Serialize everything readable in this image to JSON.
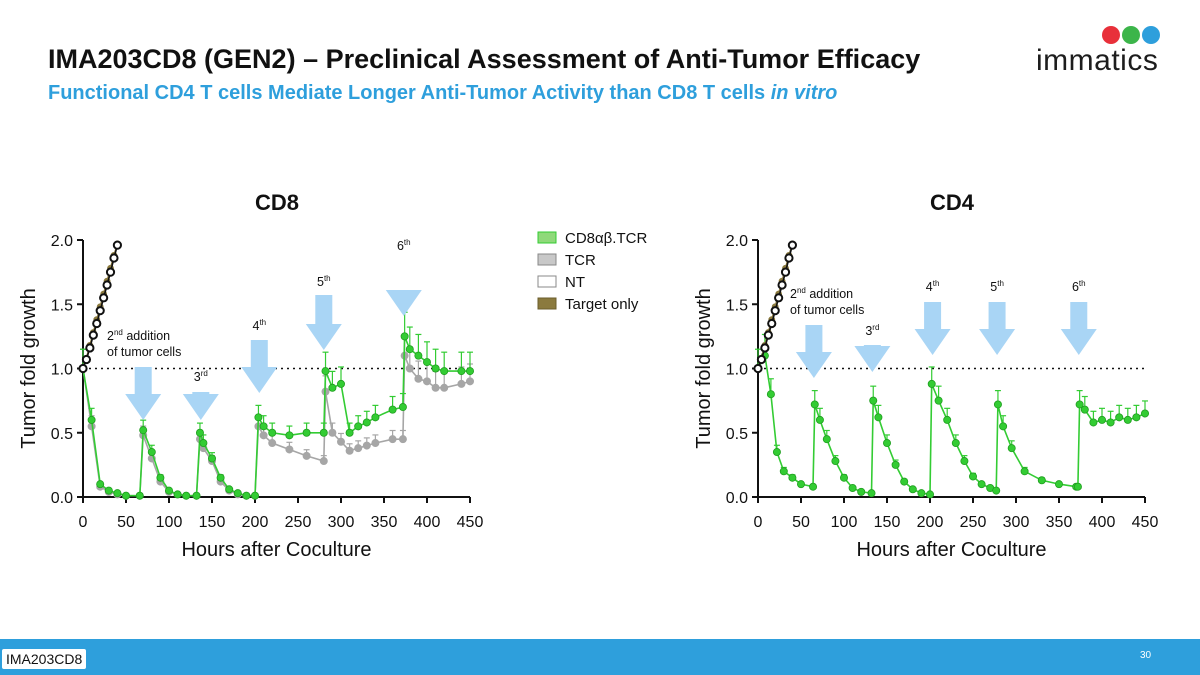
{
  "slide": {
    "title": "IMA203CD8 (GEN2) – Preclinical Assessment of Anti-Tumor Efficacy",
    "subtitle_main": "Functional CD4 T cells Mediate Longer Anti-Tumor Activity than CD8 T cells ",
    "subtitle_italic": "in vitro",
    "logo_text": "immatics",
    "footer_tag": "IMA203CD8",
    "page_number": "30"
  },
  "colors": {
    "accent_blue": "#2e9fdc",
    "arrow_blue": "#a9d5f5",
    "green": "#33cc33",
    "gray": "#a6a6a6",
    "target_only": "#8b7a3e",
    "nt_marker": "#111111"
  },
  "legend": [
    {
      "label": "CD8αβ.TCR",
      "color": "#8fd97a",
      "border": "#33cc33"
    },
    {
      "label": "TCR",
      "color": "#c8c8c8",
      "border": "#888888"
    },
    {
      "label": "NT",
      "color": "#ffffff",
      "border": "#888888"
    },
    {
      "label": "Target only",
      "color": "#8b7a3e",
      "border": "#6b5d2c"
    }
  ],
  "chart_data": [
    {
      "type": "line",
      "title": "CD8",
      "xlabel": "Hours after Coculture",
      "ylabel": "Tumor fold growth",
      "xlim": [
        0,
        450
      ],
      "ylim": [
        0,
        2.0
      ],
      "xticks": [
        0,
        50,
        100,
        150,
        200,
        250,
        300,
        350,
        400,
        450
      ],
      "yticks": [
        "0.0",
        "0.5",
        "1.0",
        "1.5",
        "2.0"
      ],
      "reference_line_y": 1.0,
      "tumor_additions": [
        {
          "label_number": "2",
          "label_suffix": "nd",
          "label_rest": " addition",
          "label_line2": "of tumor cells",
          "x": 70
        },
        {
          "label_number": "3",
          "label_suffix": "rd",
          "label_rest": "",
          "label_line2": "",
          "x": 137
        },
        {
          "label_number": "4",
          "label_suffix": "th",
          "label_rest": "",
          "label_line2": "",
          "x": 205
        },
        {
          "label_number": "5",
          "label_suffix": "th",
          "label_rest": "",
          "label_line2": "",
          "x": 280
        },
        {
          "label_number": "6",
          "label_suffix": "th",
          "label_rest": "",
          "label_line2": "",
          "x": 373
        }
      ],
      "series": [
        {
          "name": "Target only",
          "color": "#8b7a3e",
          "x": [
            0,
            4,
            8,
            12,
            16,
            20,
            24,
            28,
            32,
            36,
            40
          ],
          "y": [
            1.0,
            1.08,
            1.18,
            1.28,
            1.38,
            1.48,
            1.58,
            1.68,
            1.78,
            1.88,
            1.97
          ]
        },
        {
          "name": "NT",
          "color": "#111111",
          "x": [
            0,
            4,
            8,
            12,
            16,
            20,
            24,
            28,
            32,
            36,
            40
          ],
          "y": [
            1.0,
            1.07,
            1.16,
            1.26,
            1.35,
            1.45,
            1.55,
            1.65,
            1.75,
            1.86,
            1.96
          ]
        },
        {
          "name": "TCR",
          "color": "#a6a6a6",
          "x": [
            0,
            10,
            20,
            30,
            40,
            50,
            66,
            70,
            80,
            90,
            100,
            110,
            120,
            132,
            136,
            140,
            150,
            160,
            170,
            180,
            190,
            200,
            204,
            210,
            220,
            240,
            260,
            280,
            282,
            290,
            300,
            310,
            320,
            330,
            340,
            360,
            372,
            374,
            380,
            390,
            400,
            410,
            420,
            440,
            450
          ],
          "y": [
            1.0,
            0.55,
            0.08,
            0.04,
            0.02,
            0.01,
            0.01,
            0.48,
            0.3,
            0.12,
            0.04,
            0.02,
            0.01,
            0.01,
            0.45,
            0.38,
            0.28,
            0.12,
            0.05,
            0.02,
            0.01,
            0.01,
            0.55,
            0.48,
            0.42,
            0.37,
            0.32,
            0.28,
            0.82,
            0.5,
            0.43,
            0.36,
            0.38,
            0.4,
            0.42,
            0.45,
            0.45,
            1.1,
            1.0,
            0.92,
            0.9,
            0.85,
            0.85,
            0.88,
            0.9
          ]
        },
        {
          "name": "CD8αβ.TCR",
          "color": "#33cc33",
          "x": [
            0,
            10,
            20,
            30,
            40,
            50,
            66,
            70,
            80,
            90,
            100,
            110,
            120,
            132,
            136,
            140,
            150,
            160,
            170,
            180,
            190,
            200,
            204,
            210,
            220,
            240,
            260,
            280,
            282,
            290,
            300,
            310,
            320,
            330,
            340,
            360,
            372,
            374,
            380,
            390,
            400,
            410,
            420,
            440,
            450
          ],
          "y": [
            1.0,
            0.6,
            0.1,
            0.05,
            0.03,
            0.01,
            0.01,
            0.52,
            0.35,
            0.15,
            0.05,
            0.02,
            0.01,
            0.01,
            0.5,
            0.42,
            0.3,
            0.15,
            0.06,
            0.03,
            0.01,
            0.01,
            0.62,
            0.55,
            0.5,
            0.48,
            0.5,
            0.5,
            0.98,
            0.85,
            0.88,
            0.5,
            0.55,
            0.58,
            0.62,
            0.68,
            0.7,
            1.25,
            1.15,
            1.1,
            1.05,
            1.0,
            0.98,
            0.98,
            0.98
          ]
        }
      ]
    },
    {
      "type": "line",
      "title": "CD4",
      "xlabel": "Hours after Coculture",
      "ylabel": "Tumor fold growth",
      "xlim": [
        0,
        450
      ],
      "ylim": [
        0,
        2.0
      ],
      "xticks": [
        0,
        50,
        100,
        150,
        200,
        250,
        300,
        350,
        400,
        450
      ],
      "yticks": [
        "0.0",
        "0.5",
        "1.0",
        "1.5",
        "2.0"
      ],
      "reference_line_y": 1.0,
      "tumor_additions": [
        {
          "label_number": "2",
          "label_suffix": "nd",
          "label_rest": " addition",
          "label_line2": "of tumor cells",
          "x": 65
        },
        {
          "label_number": "3",
          "label_suffix": "rd",
          "label_rest": "",
          "label_line2": "",
          "x": 133
        },
        {
          "label_number": "4",
          "label_suffix": "th",
          "label_rest": "",
          "label_line2": "",
          "x": 203
        },
        {
          "label_number": "5",
          "label_suffix": "th",
          "label_rest": "",
          "label_line2": "",
          "x": 278
        },
        {
          "label_number": "6",
          "label_suffix": "th",
          "label_rest": "",
          "label_line2": "",
          "x": 373
        }
      ],
      "series": [
        {
          "name": "Target only",
          "color": "#8b7a3e",
          "x": [
            0,
            4,
            8,
            12,
            16,
            20,
            24,
            28,
            32,
            36,
            40
          ],
          "y": [
            1.0,
            1.08,
            1.18,
            1.28,
            1.38,
            1.48,
            1.58,
            1.68,
            1.78,
            1.88,
            1.97
          ]
        },
        {
          "name": "NT",
          "color": "#111111",
          "x": [
            0,
            4,
            8,
            12,
            16,
            20,
            24,
            28,
            32,
            36,
            40
          ],
          "y": [
            1.0,
            1.07,
            1.16,
            1.26,
            1.35,
            1.45,
            1.55,
            1.65,
            1.75,
            1.86,
            1.96
          ]
        },
        {
          "name": "CD8αβ.TCR",
          "color": "#33cc33",
          "x": [
            0,
            8,
            15,
            22,
            30,
            40,
            50,
            64,
            66,
            72,
            80,
            90,
            100,
            110,
            120,
            132,
            134,
            140,
            150,
            160,
            170,
            180,
            190,
            200,
            202,
            210,
            220,
            230,
            240,
            250,
            260,
            270,
            277,
            279,
            285,
            295,
            310,
            330,
            350,
            370,
            372,
            374,
            380,
            390,
            400,
            410,
            420,
            430,
            440,
            450
          ],
          "y": [
            1.0,
            1.1,
            0.8,
            0.35,
            0.2,
            0.15,
            0.1,
            0.08,
            0.72,
            0.6,
            0.45,
            0.28,
            0.15,
            0.07,
            0.04,
            0.03,
            0.75,
            0.62,
            0.42,
            0.25,
            0.12,
            0.06,
            0.03,
            0.02,
            0.88,
            0.75,
            0.6,
            0.42,
            0.28,
            0.16,
            0.1,
            0.07,
            0.05,
            0.72,
            0.55,
            0.38,
            0.2,
            0.13,
            0.1,
            0.08,
            0.08,
            0.72,
            0.68,
            0.58,
            0.6,
            0.58,
            0.62,
            0.6,
            0.62,
            0.65
          ]
        }
      ]
    }
  ]
}
